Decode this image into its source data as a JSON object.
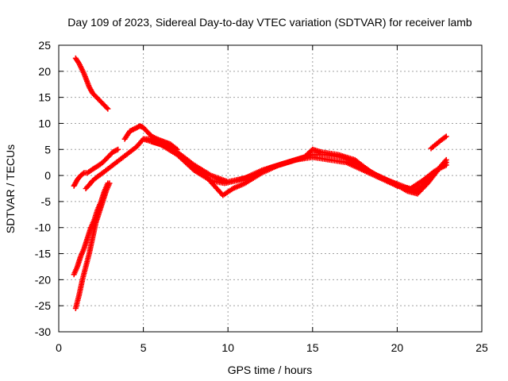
{
  "chart_data": {
    "type": "scatter",
    "title": "Day 109 of 2023, Sidereal Day-to-day VTEC variation (SDTVAR) for receiver lamb",
    "xlabel": "GPS time / hours",
    "ylabel": "SDTVAR / TECUs",
    "xlim": [
      0,
      25
    ],
    "ylim": [
      -30,
      25
    ],
    "xticks": [
      0,
      5,
      10,
      15,
      20,
      25
    ],
    "yticks": [
      25,
      20,
      15,
      10,
      5,
      0,
      -5,
      -10,
      -15,
      -20,
      -25,
      -30
    ],
    "grid": true,
    "marker": "+",
    "color": "#ff0000",
    "series": [
      {
        "name": "arc-top-left",
        "x": [
          1.0,
          1.2,
          1.5,
          1.8,
          2.0,
          2.3,
          2.6,
          2.9
        ],
        "y": [
          22.5,
          21.5,
          19.5,
          17.0,
          15.8,
          14.8,
          13.8,
          12.8
        ]
      },
      {
        "name": "arc-rise-1",
        "x": [
          0.9,
          1.1,
          1.3,
          1.5,
          1.7,
          2.0,
          2.3,
          2.6,
          2.9,
          3.2,
          3.5
        ],
        "y": [
          -2.0,
          -0.8,
          0.0,
          0.5,
          0.5,
          1.2,
          1.8,
          2.5,
          3.5,
          4.5,
          5.0
        ]
      },
      {
        "name": "arc-rise-2",
        "x": [
          1.6,
          1.8,
          2.0,
          2.3,
          2.6,
          3.0,
          3.4,
          3.8,
          4.2,
          4.6,
          5.0,
          5.4,
          5.8,
          6.2,
          6.6
        ],
        "y": [
          -2.5,
          -1.8,
          -1.0,
          -0.2,
          0.5,
          1.5,
          2.5,
          3.5,
          4.5,
          5.5,
          7.0,
          7.0,
          6.5,
          6.2,
          6.0
        ]
      },
      {
        "name": "arc-hump",
        "x": [
          3.9,
          4.2,
          4.5,
          4.8,
          5.0,
          5.2,
          5.5,
          5.8,
          6.2,
          6.6,
          7.0
        ],
        "y": [
          7.0,
          8.5,
          9.0,
          9.5,
          9.2,
          8.5,
          7.5,
          7.0,
          6.5,
          6.0,
          5.0
        ]
      },
      {
        "name": "arc-steep-1",
        "x": [
          1.0,
          1.2,
          1.4,
          1.6,
          1.8,
          2.0,
          2.2,
          2.4,
          2.6,
          2.8,
          3.0
        ],
        "y": [
          -25.5,
          -23.0,
          -20.0,
          -17.5,
          -15.0,
          -12.0,
          -9.0,
          -7.0,
          -5.0,
          -3.0,
          -1.5
        ]
      },
      {
        "name": "arc-steep-2",
        "x": [
          0.9,
          1.1,
          1.3,
          1.5,
          1.7,
          1.9,
          2.1,
          2.3,
          2.5,
          2.7,
          2.9
        ],
        "y": [
          -19.0,
          -17.5,
          -15.5,
          -14.0,
          -12.0,
          -10.0,
          -8.5,
          -6.5,
          -5.0,
          -3.0,
          -1.5
        ]
      },
      {
        "name": "main-1",
        "x": [
          5.0,
          6.0,
          7.0,
          8.0,
          9.0,
          9.8,
          10.5,
          11.5,
          12.5,
          13.5,
          14.5,
          15.0,
          15.5,
          16.5,
          17.5,
          18.5,
          19.5,
          20.3,
          21.0,
          21.5,
          22.0,
          22.5,
          22.9
        ],
        "y": [
          7.0,
          6.0,
          4.0,
          1.0,
          -1.0,
          -1.5,
          -1.0,
          0.0,
          1.5,
          2.5,
          3.5,
          5.0,
          4.5,
          4.0,
          3.0,
          0.5,
          -1.0,
          -2.0,
          -3.0,
          -2.0,
          0.0,
          1.5,
          3.0
        ]
      },
      {
        "name": "main-2",
        "x": [
          5.5,
          6.5,
          7.5,
          8.5,
          9.2,
          9.7,
          10.3,
          11.0,
          12.0,
          13.0,
          14.0,
          15.0,
          15.8,
          16.8,
          17.8,
          18.8,
          19.8,
          20.6,
          21.2,
          21.8,
          22.4,
          22.9
        ],
        "y": [
          6.5,
          5.5,
          3.0,
          0.5,
          -2.0,
          -3.8,
          -2.5,
          -1.5,
          0.5,
          2.0,
          3.0,
          4.0,
          4.0,
          3.5,
          2.0,
          0.0,
          -1.5,
          -3.0,
          -3.5,
          -1.5,
          1.0,
          2.5
        ]
      },
      {
        "name": "main-3",
        "x": [
          6.0,
          7.0,
          8.0,
          9.0,
          10.0,
          11.0,
          12.0,
          13.0,
          14.0,
          15.0,
          16.0,
          17.0,
          18.0,
          19.0,
          20.0,
          20.8,
          21.5,
          22.2,
          22.9
        ],
        "y": [
          6.0,
          4.5,
          2.0,
          0.0,
          -1.2,
          -0.5,
          1.0,
          2.0,
          3.0,
          3.5,
          3.0,
          2.5,
          1.0,
          -0.5,
          -2.0,
          -2.5,
          -1.0,
          0.8,
          2.0
        ]
      },
      {
        "name": "arc-end",
        "x": [
          22.0,
          22.3,
          22.6,
          22.9
        ],
        "y": [
          5.2,
          6.0,
          6.8,
          7.5
        ]
      }
    ]
  }
}
